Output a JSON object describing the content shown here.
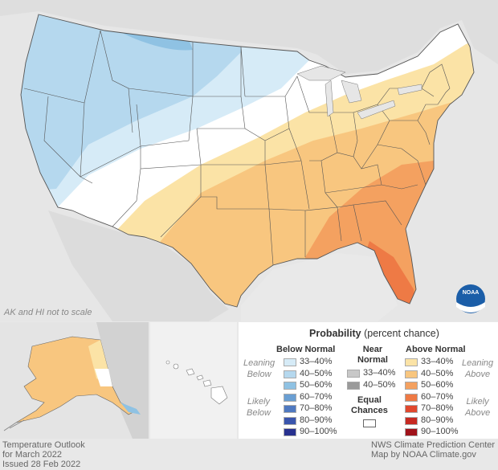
{
  "map": {
    "scale_note": "AK and HI not to scale",
    "logo_text": "NOAA"
  },
  "legend": {
    "title": "Probability",
    "title_suffix": "(percent chance)",
    "below_header": "Below Normal",
    "near_header_1": "Near",
    "near_header_2": "Normal",
    "above_header": "Above Normal",
    "leaning_below_1": "Leaning",
    "leaning_below_2": "Below",
    "likely_below_1": "Likely",
    "likely_below_2": "Below",
    "leaning_above_1": "Leaning",
    "leaning_above_2": "Above",
    "likely_above_1": "Likely",
    "likely_above_2": "Above",
    "equal_1": "Equal",
    "equal_2": "Chances",
    "below_items": [
      {
        "label": "33–40%",
        "color": "#d6ebf7"
      },
      {
        "label": "40–50%",
        "color": "#b5d8ee"
      },
      {
        "label": "50–60%",
        "color": "#8fc2e3"
      },
      {
        "label": "60–70%",
        "color": "#6a9fd3"
      },
      {
        "label": "70–80%",
        "color": "#4f79c0"
      },
      {
        "label": "80–90%",
        "color": "#3a55ad"
      },
      {
        "label": "90–100%",
        "color": "#28318f"
      }
    ],
    "near_items": [
      {
        "label": "33–40%",
        "color": "#c8c8c8"
      },
      {
        "label": "40–50%",
        "color": "#9a9a9a"
      }
    ],
    "above_items": [
      {
        "label": "33–40%",
        "color": "#fbe3a6"
      },
      {
        "label": "40–50%",
        "color": "#f8c67f"
      },
      {
        "label": "50–60%",
        "color": "#f4a160"
      },
      {
        "label": "60–70%",
        "color": "#ee7a45"
      },
      {
        "label": "70–80%",
        "color": "#e0482e"
      },
      {
        "label": "80–90%",
        "color": "#c62a22"
      },
      {
        "label": "90–100%",
        "color": "#a0121a"
      }
    ]
  },
  "footer": {
    "left_1": "Temperature Outlook",
    "left_2": "for March 2022",
    "left_3": "Issued 28 Feb 2022",
    "right_1": "NWS Climate Prediction Center",
    "right_2": "Map by NOAA Climate.gov"
  }
}
